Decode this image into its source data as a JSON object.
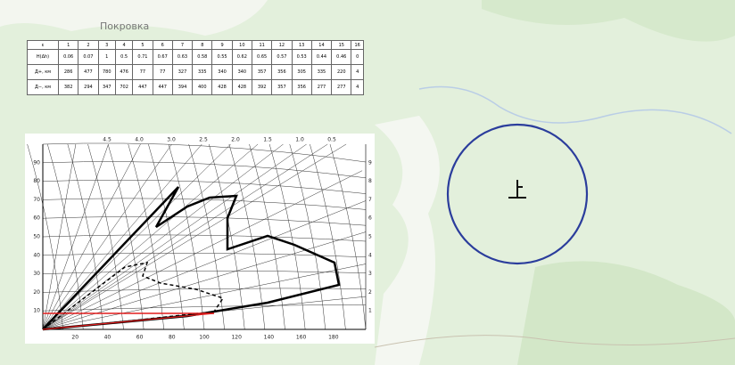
{
  "map_label": "Покровка",
  "table": {
    "rows": [
      [
        "ε",
        "1",
        "2",
        "3",
        "4",
        "5",
        "6",
        "7",
        "8",
        "9",
        "10",
        "11",
        "12",
        "13",
        "14",
        "15",
        "16"
      ],
      [
        "Н(Δh)",
        "0.06",
        "0.07",
        "1",
        "0.5",
        "0.71",
        "0.67",
        "0.63",
        "0.58",
        "0.55",
        "0.62",
        "0.65",
        "0.57",
        "0.53",
        "0.44",
        "0.46",
        "0"
      ],
      [
        "Д+, км",
        "286",
        "477",
        "780",
        "476",
        "77",
        "77",
        "327",
        "335",
        "340",
        "340",
        "357",
        "356",
        "305",
        "335",
        "220",
        "4"
      ],
      [
        "Д−, км",
        "382",
        "294",
        "347",
        "702",
        "447",
        "447",
        "394",
        "400",
        "428",
        "428",
        "392",
        "357",
        "356",
        "277",
        "277",
        "4"
      ]
    ]
  },
  "diagram": {
    "y_labels": [
      "10",
      "20",
      "30",
      "40",
      "50",
      "60",
      "70",
      "80",
      "90"
    ],
    "right_labels": [
      "1",
      "2",
      "3",
      "4",
      "5",
      "6",
      "7",
      "8",
      "9"
    ],
    "x_labels": [
      "20",
      "40",
      "60",
      "80",
      "100",
      "120",
      "140",
      "160",
      "180"
    ],
    "top_labels": [
      "4.5",
      "4.0",
      "3.0",
      "2.5",
      "2.0",
      "1.5",
      "1.0",
      "0.5"
    ]
  }
}
